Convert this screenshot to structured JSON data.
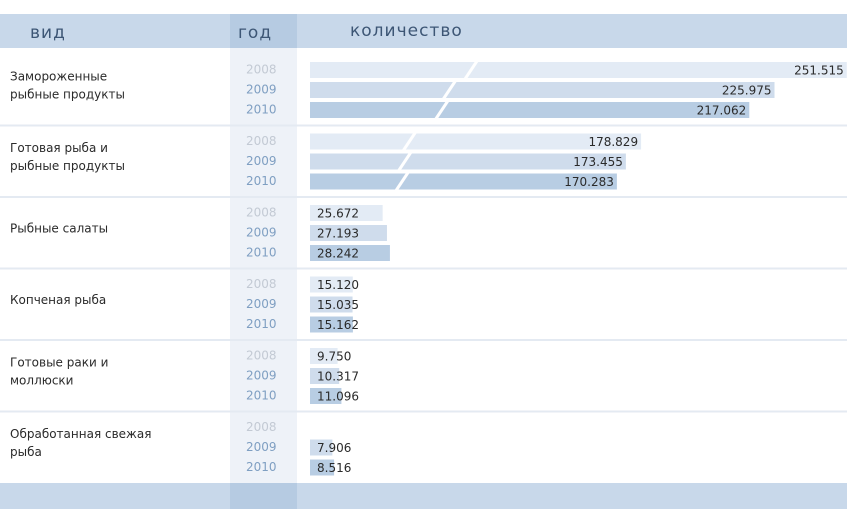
{
  "chart_data": {
    "type": "broken-bar",
    "columns": [
      "вид",
      "год",
      "количество"
    ],
    "categories": [
      [
        "Замороженные",
        "рыбные продукты"
      ],
      [
        "Готовая рыба и",
        "рыбные продукты"
      ],
      [
        "Рыбные салаты"
      ],
      [
        "Копченая рыба"
      ],
      [
        "Готовые раки и",
        "моллюски"
      ],
      [
        "Обработанная свежая",
        "рыба"
      ]
    ],
    "series": [
      {
        "name": "2008",
        "color": "#e3ebf5",
        "year_color": "#c3cad4",
        "values": [
          251515,
          178829,
          25672,
          15120,
          9750,
          null
        ],
        "value_labels": [
          "251.515",
          "178.829",
          "25.672",
          "15.120",
          "9.750",
          null
        ]
      },
      {
        "name": "2009",
        "color": "#cfdcec",
        "year_color": "#7f9fc2",
        "values": [
          225975,
          173455,
          27193,
          15035,
          10317,
          7906
        ],
        "value_labels": [
          "225.975",
          "173.455",
          "27.193",
          "15.035",
          "10.317",
          "7.906"
        ]
      },
      {
        "name": "2010",
        "color": "#b8cde3",
        "year_color": "#7f9fc2",
        "values": [
          217062,
          170283,
          28242,
          15162,
          11096,
          8516
        ],
        "value_labels": [
          "217.062",
          "170.283",
          "28.242",
          "15.162",
          "11.096",
          "8.516"
        ]
      }
    ]
  }
}
